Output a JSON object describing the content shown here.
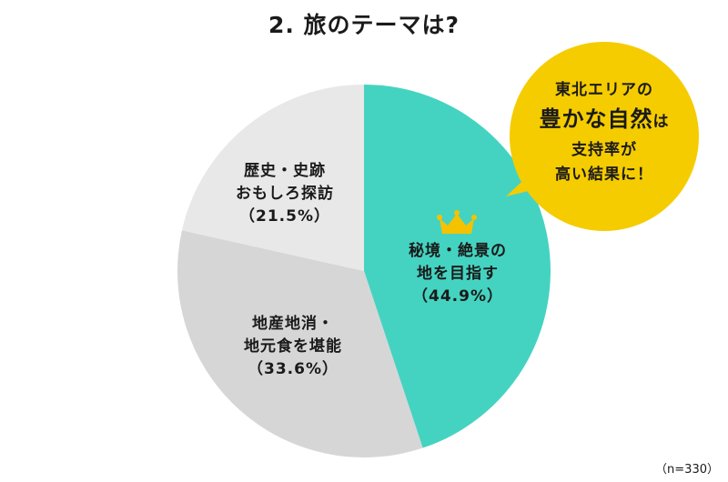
{
  "chart_data": {
    "type": "pie",
    "title": "2. 旅のテーマは?",
    "slices": [
      {
        "label_lines": [
          "秘境・絶景の",
          "地を目指す"
        ],
        "value": 44.9,
        "value_label": "（44.9%）",
        "color": "#45d3c1"
      },
      {
        "label_lines": [
          "地産地消・",
          "地元食を堪能"
        ],
        "value": 33.6,
        "value_label": "（33.6%）",
        "color": "#d6d6d6"
      },
      {
        "label_lines": [
          "歴史・史跡",
          "おもしろ探訪"
        ],
        "value": 21.5,
        "value_label": "（21.5%）",
        "color": "#e8e8e8"
      }
    ],
    "start": "12 o'clock",
    "direction": "clockwise",
    "highlight": "crown-icon on largest slice",
    "sample_size": "（n=330）"
  },
  "callout": {
    "line1": "東北エリアの",
    "line2_big": "豊かな自然",
    "line2_small": "は",
    "line3": "支持率が",
    "line4": "高い結果に！",
    "color": "#f5cc00"
  },
  "colors": {
    "crown": "#f5c200"
  }
}
